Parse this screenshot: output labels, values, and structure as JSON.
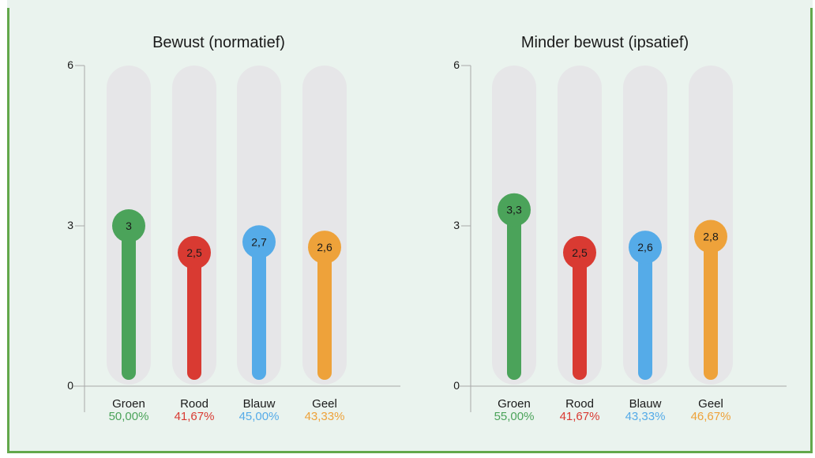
{
  "colors": {
    "Groen": "#4ba35a",
    "Rood": "#d93a32",
    "Blauw": "#55abe8",
    "Geel": "#eea23a",
    "track": "#e6e6e8",
    "axis": "#a8a8a8",
    "frame": "#63a84b"
  },
  "chart_data": [
    {
      "type": "bar",
      "title": "Bewust (normatief)",
      "categories": [
        "Groen",
        "Rood",
        "Blauw",
        "Geel"
      ],
      "values": [
        3,
        2.5,
        2.7,
        2.6
      ],
      "value_labels": [
        "3",
        "2,5",
        "2,7",
        "2,6"
      ],
      "percentages": [
        "50,00%",
        "41,67%",
        "45,00%",
        "43,33%"
      ],
      "ylim": [
        0,
        6
      ],
      "yticks": [
        "0",
        "3",
        "6"
      ]
    },
    {
      "type": "bar",
      "title": "Minder bewust (ipsatief)",
      "categories": [
        "Groen",
        "Rood",
        "Blauw",
        "Geel"
      ],
      "values": [
        3.3,
        2.5,
        2.6,
        2.8
      ],
      "value_labels": [
        "3,3",
        "2,5",
        "2,6",
        "2,8"
      ],
      "percentages": [
        "55,00%",
        "41,67%",
        "43,33%",
        "46,67%"
      ],
      "ylim": [
        0,
        6
      ],
      "yticks": [
        "0",
        "3",
        "6"
      ]
    }
  ]
}
